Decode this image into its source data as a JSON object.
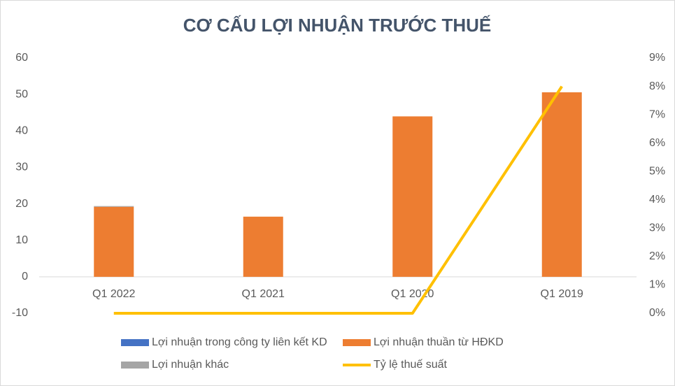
{
  "chart_data": {
    "type": "bar",
    "title": "CƠ CẤU LỢI NHUẬN TRƯỚC THUẾ",
    "categories": [
      "Q1 2022",
      "Q1 2021",
      "Q1 2020",
      "Q1 2019"
    ],
    "series": [
      {
        "name": "Lợi nhuận trong công ty liên kết KD",
        "color": "#4472c4",
        "type": "bar",
        "values": [
          0,
          0,
          0,
          0
        ]
      },
      {
        "name": "Lợi nhuận thuần từ HĐKD",
        "color": "#ed7d31",
        "type": "bar",
        "values": [
          19.2,
          16.5,
          44,
          50.6
        ]
      },
      {
        "name": "Lợi nhuận khác",
        "color": "#a5a5a5",
        "type": "bar",
        "values": [
          0.2,
          0,
          0,
          0
        ]
      },
      {
        "name": "Tỷ lệ thuế suất",
        "color": "#ffc000",
        "type": "line",
        "axis": "y2",
        "values": [
          0,
          0,
          0,
          8
        ]
      }
    ],
    "ylim": [
      -10,
      60
    ],
    "yticks": [
      -10,
      0,
      10,
      20,
      30,
      40,
      50,
      60
    ],
    "y2lim": [
      0,
      9
    ],
    "y2ticks": [
      {
        "value": 0,
        "label": "0%"
      },
      {
        "value": 1,
        "label": "1%"
      },
      {
        "value": 2,
        "label": "2%"
      },
      {
        "value": 3,
        "label": "3%"
      },
      {
        "value": 4,
        "label": "4%"
      },
      {
        "value": 5,
        "label": "5%"
      },
      {
        "value": 6,
        "label": "6%"
      },
      {
        "value": 7,
        "label": "7%"
      },
      {
        "value": 8,
        "label": "8%"
      },
      {
        "value": 9,
        "label": "9%"
      }
    ],
    "grid": false
  }
}
